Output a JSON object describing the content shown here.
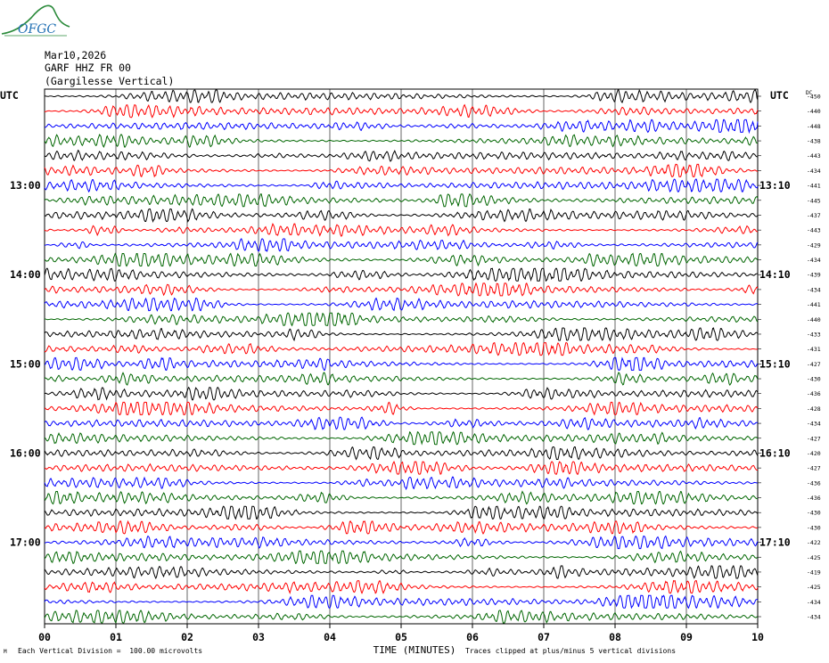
{
  "header": {
    "logo_text": "OFGC",
    "date": "Mar10,2026",
    "station": "GARF HHZ FR 00",
    "station_name": "(Gargilesse Vertical)"
  },
  "footer": {
    "scale": "Each Vertical Division =  100.00 microvolts",
    "clip_note": "Traces clipped at plus/minus 5 vertical divisions",
    "corner_mark": "M"
  },
  "chart_data": {
    "type": "line",
    "title": "",
    "xlabel": "TIME (MINUTES)",
    "ylabel_left": "UTC",
    "ylabel_right": "UTC",
    "right_axis_header": "DC",
    "x_ticks": [
      "00",
      "01",
      "02",
      "03",
      "04",
      "05",
      "06",
      "07",
      "08",
      "09",
      "10"
    ],
    "xlim": [
      0,
      10
    ],
    "grid": true,
    "trace_colors": [
      "#000000",
      "#ff0000",
      "#0000ff",
      "#006600"
    ],
    "left_time_labels": [
      {
        "trace_index": 6,
        "label": "13:00"
      },
      {
        "trace_index": 12,
        "label": "14:00"
      },
      {
        "trace_index": 18,
        "label": "15:00"
      },
      {
        "trace_index": 24,
        "label": "16:00"
      },
      {
        "trace_index": 30,
        "label": "17:00"
      }
    ],
    "right_time_labels": [
      {
        "trace_index": 6,
        "label": "13:10"
      },
      {
        "trace_index": 12,
        "label": "14:10"
      },
      {
        "trace_index": 18,
        "label": "15:10"
      },
      {
        "trace_index": 24,
        "label": "16:10"
      },
      {
        "trace_index": 30,
        "label": "17:10"
      }
    ],
    "dc_offsets": [
      "-450",
      "-440",
      "-448",
      "-438",
      "-443",
      "-434",
      "-441",
      "-445",
      "-437",
      "-443",
      "-429",
      "-434",
      "-439",
      "-434",
      "-441",
      "-440",
      "-433",
      "-431",
      "-427",
      "-430",
      "-436",
      "-428",
      "-434",
      "-427",
      "-420",
      "-427",
      "-436",
      "-436",
      "-430",
      "-430",
      "-422",
      "-425",
      "-419",
      "-425",
      "-434",
      "-434"
    ]
  }
}
